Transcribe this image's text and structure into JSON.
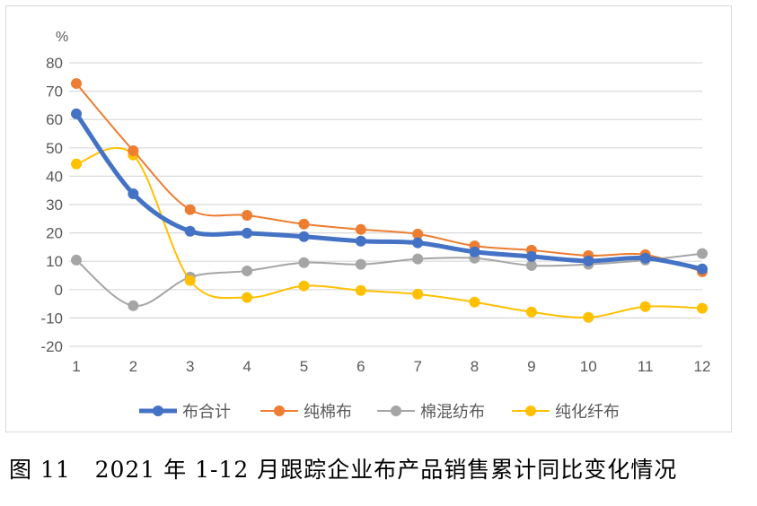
{
  "chart_data": {
    "type": "line",
    "title": "",
    "ylabel": "%",
    "xlabel": "",
    "x": [
      1,
      2,
      3,
      4,
      5,
      6,
      7,
      8,
      9,
      10,
      11,
      12
    ],
    "x_tick_labels": [
      "1",
      "2",
      "3",
      "4",
      "5",
      "6",
      "7",
      "8",
      "9",
      "10",
      "11",
      "12"
    ],
    "ylim": [
      -20,
      80
    ],
    "y_ticks": [
      -20,
      -10,
      0,
      10,
      20,
      30,
      40,
      50,
      60,
      70,
      80
    ],
    "grid": true,
    "smooth": true,
    "legend_position": "bottom",
    "series": [
      {
        "name": "布合计",
        "color": "#4472C4",
        "values": [
          62.0,
          33.8,
          20.6,
          19.9,
          18.7,
          17.1,
          16.5,
          13.3,
          11.7,
          10.1,
          11.1,
          7.3
        ]
      },
      {
        "name": "纯棉布",
        "color": "#ED7D31",
        "values": [
          72.7,
          49.0,
          28.2,
          26.2,
          23.1,
          21.2,
          19.6,
          15.4,
          13.9,
          12.0,
          12.3,
          6.3
        ]
      },
      {
        "name": "棉混纺布",
        "color": "#A5A5A5",
        "values": [
          10.4,
          -5.7,
          4.4,
          6.6,
          9.5,
          8.9,
          10.8,
          11.1,
          8.5,
          8.9,
          10.4,
          12.7
        ]
      },
      {
        "name": "纯化纤布",
        "color": "#FFC000",
        "values": [
          44.3,
          47.5,
          3.2,
          -2.8,
          1.3,
          -0.3,
          -1.6,
          -4.4,
          -7.9,
          -9.8,
          -6.0,
          -6.6
        ]
      }
    ]
  },
  "caption": "图 11   2021 年 1-12 月跟踪企业布产品销售累计同比变化情况"
}
